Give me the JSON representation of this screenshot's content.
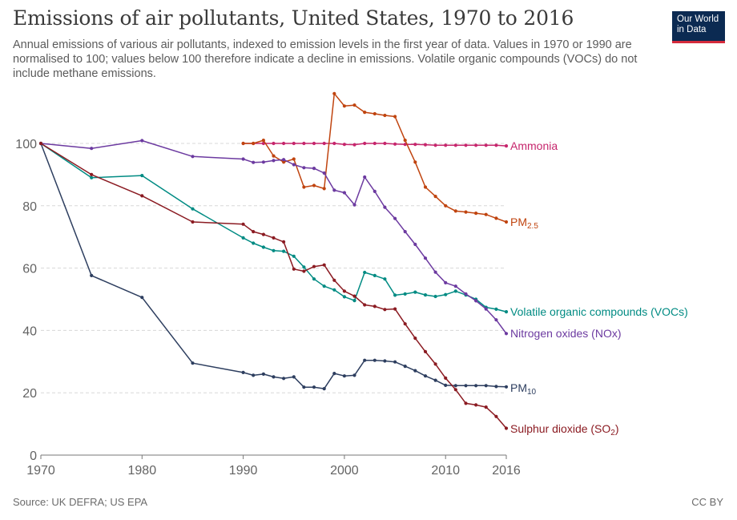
{
  "header": {
    "title": "Emissions of air pollutants, United States, 1970 to 2016",
    "subtitle": "Annual emissions of various air pollutants, indexed to emission levels in the first year of data. Values in 1970 or 1990 are normalised to 100; values below 100 therefore indicate a decline in emissions. Volatile organic compounds (VOCs) do not include methane emissions.",
    "logo_line1": "Our World",
    "logo_line2": "in Data"
  },
  "footer": {
    "source": "Source: UK DEFRA; US EPA",
    "license": "CC BY"
  },
  "colors": {
    "Ammonia": "#c6256c",
    "PM2.5": "#c0440f",
    "VOCs": "#008b83",
    "NOx": "#6c3aa0",
    "PM10": "#2d3e5f",
    "SO2": "#8b1b22",
    "grid": "#d8d8d8",
    "axis": "#777777",
    "tick_text": "#636363"
  },
  "chart_data": {
    "type": "line",
    "title": "Emissions of air pollutants, United States, 1970 to 2016",
    "xlabel": "",
    "ylabel": "",
    "xlim": [
      1970,
      2016
    ],
    "ylim": [
      0,
      120
    ],
    "x_ticks": [
      1970,
      1980,
      1990,
      2000,
      2010,
      2016
    ],
    "y_ticks": [
      0,
      20,
      40,
      60,
      80,
      100
    ],
    "grid": "horizontal dashed",
    "legend": "inline labels at line ends (right)",
    "series": [
      {
        "name": "Ammonia",
        "label_main": "Ammonia",
        "label_sub": "",
        "color_key": "Ammonia",
        "points": [
          [
            1990,
            100
          ],
          [
            1991,
            100
          ],
          [
            1992,
            100
          ],
          [
            1993,
            100
          ],
          [
            1994,
            100
          ],
          [
            1995,
            100
          ],
          [
            1996,
            100
          ],
          [
            1997,
            100
          ],
          [
            1998,
            100
          ],
          [
            1999,
            100
          ],
          [
            2000,
            99.7
          ],
          [
            2001,
            99.6
          ],
          [
            2002,
            100
          ],
          [
            2003,
            100
          ],
          [
            2004,
            100
          ],
          [
            2005,
            99.8
          ],
          [
            2006,
            99.7
          ],
          [
            2007,
            99.7
          ],
          [
            2008,
            99.6
          ],
          [
            2009,
            99.4
          ],
          [
            2010,
            99.4
          ],
          [
            2011,
            99.4
          ],
          [
            2012,
            99.4
          ],
          [
            2013,
            99.4
          ],
          [
            2014,
            99.4
          ],
          [
            2015,
            99.4
          ],
          [
            2016,
            99.2
          ]
        ]
      },
      {
        "name": "PM2.5",
        "label_main": "PM",
        "label_sub": "2.5",
        "color_key": "PM2.5",
        "points": [
          [
            1990,
            100
          ],
          [
            1991,
            100
          ],
          [
            1992,
            101
          ],
          [
            1993,
            96
          ],
          [
            1994,
            94
          ],
          [
            1995,
            95
          ],
          [
            1996,
            86
          ],
          [
            1997,
            86.5
          ],
          [
            1998,
            85.5
          ],
          [
            1999,
            116
          ],
          [
            2000,
            112
          ],
          [
            2001,
            112.3
          ],
          [
            2002,
            110
          ],
          [
            2003,
            109.5
          ],
          [
            2004,
            109
          ],
          [
            2005,
            108.6
          ],
          [
            2006,
            101
          ],
          [
            2007,
            94
          ],
          [
            2008,
            86
          ],
          [
            2009,
            83
          ],
          [
            2010,
            80
          ],
          [
            2011,
            78.3
          ],
          [
            2012,
            78
          ],
          [
            2013,
            77.6
          ],
          [
            2014,
            77.2
          ],
          [
            2015,
            76
          ],
          [
            2016,
            74.8
          ]
        ]
      },
      {
        "name": "Volatile organic compounds (VOCs)",
        "label_main": "Volatile organic compounds (VOCs)",
        "label_sub": "",
        "color_key": "VOCs",
        "points": [
          [
            1970,
            100
          ],
          [
            1975,
            89
          ],
          [
            1980,
            89.7
          ],
          [
            1985,
            79
          ],
          [
            1990,
            69.7
          ],
          [
            1991,
            68
          ],
          [
            1992,
            66.7
          ],
          [
            1993,
            65.6
          ],
          [
            1994,
            65.4
          ],
          [
            1995,
            63.8
          ],
          [
            1996,
            60.3
          ],
          [
            1997,
            56.5
          ],
          [
            1998,
            54.2
          ],
          [
            1999,
            53
          ],
          [
            2000,
            50.8
          ],
          [
            2001,
            49.6
          ],
          [
            2002,
            58.6
          ],
          [
            2003,
            57.6
          ],
          [
            2004,
            56.5
          ],
          [
            2005,
            51.3
          ],
          [
            2006,
            51.7
          ],
          [
            2007,
            52.3
          ],
          [
            2008,
            51.4
          ],
          [
            2009,
            50.9
          ],
          [
            2010,
            51.5
          ],
          [
            2011,
            52.6
          ],
          [
            2012,
            51.4
          ],
          [
            2013,
            50
          ],
          [
            2014,
            47.4
          ],
          [
            2015,
            46.8
          ],
          [
            2016,
            46
          ]
        ]
      },
      {
        "name": "Nitrogen oxides (NOx)",
        "label_main": "Nitrogen oxides (NOx)",
        "label_sub": "",
        "color_key": "NOx",
        "points": [
          [
            1970,
            100
          ],
          [
            1975,
            98.4
          ],
          [
            1980,
            100.9
          ],
          [
            1985,
            95.8
          ],
          [
            1990,
            95
          ],
          [
            1991,
            93.9
          ],
          [
            1992,
            94
          ],
          [
            1993,
            94.5
          ],
          [
            1994,
            94.8
          ],
          [
            1995,
            93.2
          ],
          [
            1996,
            92.2
          ],
          [
            1997,
            92
          ],
          [
            1998,
            90.5
          ],
          [
            1999,
            85
          ],
          [
            2000,
            84.2
          ],
          [
            2001,
            80.3
          ],
          [
            2002,
            89.2
          ],
          [
            2003,
            84.6
          ],
          [
            2004,
            79.5
          ],
          [
            2005,
            75.9
          ],
          [
            2006,
            71.7
          ],
          [
            2007,
            67.6
          ],
          [
            2008,
            63.2
          ],
          [
            2009,
            58.7
          ],
          [
            2010,
            55.3
          ],
          [
            2011,
            54.2
          ],
          [
            2012,
            51.7
          ],
          [
            2013,
            49.5
          ],
          [
            2014,
            46.9
          ],
          [
            2015,
            43.4
          ],
          [
            2016,
            39
          ]
        ]
      },
      {
        "name": "PM10",
        "label_main": "PM",
        "label_sub": "10",
        "color_key": "PM10",
        "points": [
          [
            1970,
            100
          ],
          [
            1975,
            57.6
          ],
          [
            1980,
            50.6
          ],
          [
            1985,
            29.5
          ],
          [
            1990,
            26.5
          ],
          [
            1991,
            25.6
          ],
          [
            1992,
            26
          ],
          [
            1993,
            25.1
          ],
          [
            1994,
            24.6
          ],
          [
            1995,
            25.1
          ],
          [
            1996,
            21.8
          ],
          [
            1997,
            21.8
          ],
          [
            1998,
            21.3
          ],
          [
            1999,
            26.2
          ],
          [
            2000,
            25.4
          ],
          [
            2001,
            25.6
          ],
          [
            2002,
            30.4
          ],
          [
            2003,
            30.4
          ],
          [
            2004,
            30.2
          ],
          [
            2005,
            29.9
          ],
          [
            2006,
            28.5
          ],
          [
            2007,
            27.1
          ],
          [
            2008,
            25.4
          ],
          [
            2009,
            24
          ],
          [
            2010,
            22.4
          ],
          [
            2011,
            22.3
          ],
          [
            2012,
            22.3
          ],
          [
            2013,
            22.3
          ],
          [
            2014,
            22.3
          ],
          [
            2015,
            22
          ],
          [
            2016,
            21.9
          ]
        ]
      },
      {
        "name": "Sulphur dioxide (SO2)",
        "label_main": "Sulphur dioxide (SO",
        "label_sub": "2",
        "label_tail": ")",
        "color_key": "SO2",
        "points": [
          [
            1970,
            100
          ],
          [
            1975,
            90
          ],
          [
            1980,
            83.2
          ],
          [
            1985,
            74.8
          ],
          [
            1990,
            74.1
          ],
          [
            1991,
            71.7
          ],
          [
            1992,
            70.8
          ],
          [
            1993,
            69.7
          ],
          [
            1994,
            68.4
          ],
          [
            1995,
            59.7
          ],
          [
            1996,
            59
          ],
          [
            1997,
            60.5
          ],
          [
            1998,
            61
          ],
          [
            1999,
            56.1
          ],
          [
            2000,
            52.6
          ],
          [
            2001,
            51
          ],
          [
            2002,
            48.2
          ],
          [
            2003,
            47.7
          ],
          [
            2004,
            46.7
          ],
          [
            2005,
            46.9
          ],
          [
            2006,
            42.1
          ],
          [
            2007,
            37.5
          ],
          [
            2008,
            33.2
          ],
          [
            2009,
            29.2
          ],
          [
            2010,
            24.7
          ],
          [
            2011,
            21
          ],
          [
            2012,
            16.6
          ],
          [
            2013,
            16.1
          ],
          [
            2014,
            15.4
          ],
          [
            2015,
            12.4
          ],
          [
            2016,
            8.6
          ]
        ]
      }
    ]
  }
}
